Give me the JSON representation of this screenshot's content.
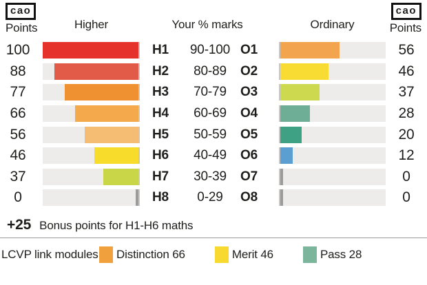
{
  "logo": {
    "text": "cao"
  },
  "header": {
    "left_points_label": "Points",
    "higher": "Higher",
    "marks": "Your % marks",
    "ordinary": "Ordinary",
    "right_points_label": "Points"
  },
  "rows": [
    {
      "left_points": "100",
      "h_grade": "H1",
      "range": "90-100",
      "o_grade": "O1",
      "right_points": "56",
      "h_value": 100,
      "o_value": 56,
      "h_color": "#e5322a",
      "o_color": "#f2a54e"
    },
    {
      "left_points": "88",
      "h_grade": "H2",
      "range": "80-89",
      "o_grade": "O2",
      "right_points": "46",
      "h_value": 88,
      "o_value": 46,
      "h_color": "#e25a48",
      "o_color": "#f8dc33"
    },
    {
      "left_points": "77",
      "h_grade": "H3",
      "range": "70-79",
      "o_grade": "O3",
      "right_points": "37",
      "h_value": 77,
      "o_value": 37,
      "h_color": "#ef9031",
      "o_color": "#cdd94f"
    },
    {
      "left_points": "66",
      "h_grade": "H4",
      "range": "60-69",
      "o_grade": "O4",
      "right_points": "28",
      "h_value": 66,
      "o_value": 28,
      "h_color": "#f4a94d",
      "o_color": "#6fae96"
    },
    {
      "left_points": "56",
      "h_grade": "H5",
      "range": "50-59",
      "o_grade": "O5",
      "right_points": "20",
      "h_value": 56,
      "o_value": 20,
      "h_color": "#f5bc74",
      "o_color": "#3fa183"
    },
    {
      "left_points": "46",
      "h_grade": "H6",
      "range": "40-49",
      "o_grade": "O6",
      "right_points": "12",
      "h_value": 46,
      "o_value": 12,
      "h_color": "#f8dc2b",
      "o_color": "#5b9fd2"
    },
    {
      "left_points": "37",
      "h_grade": "H7",
      "range": "30-39",
      "o_grade": "O7",
      "right_points": "0",
      "h_value": 37,
      "o_value": 0,
      "h_color": "#c8d647",
      "o_color": "#9b9b9b"
    },
    {
      "left_points": "0",
      "h_grade": "H8",
      "range": "0-29",
      "o_grade": "O8",
      "right_points": "0",
      "h_value": 0,
      "o_value": 0,
      "h_color": "#9b9b9b",
      "o_color": "#9b9b9b"
    }
  ],
  "bonus": {
    "points": "+25",
    "text": "Bonus points for H1-H6 maths"
  },
  "legend": {
    "title": "LCVP link modules",
    "items": [
      {
        "label": "Distinction 66",
        "color": "#f0a03c"
      },
      {
        "label": "Merit 46",
        "color": "#f7d930"
      },
      {
        "label": "Pass 28",
        "color": "#7ab59c"
      }
    ]
  },
  "chart_data": {
    "type": "bar",
    "title": "CAO Points",
    "categories": [
      "90-100",
      "80-89",
      "70-79",
      "60-69",
      "50-59",
      "40-49",
      "30-39",
      "0-29"
    ],
    "series": [
      {
        "name": "Higher",
        "grades": [
          "H1",
          "H2",
          "H3",
          "H4",
          "H5",
          "H6",
          "H7",
          "H8"
        ],
        "values": [
          100,
          88,
          77,
          66,
          56,
          46,
          37,
          0
        ]
      },
      {
        "name": "Ordinary",
        "grades": [
          "O1",
          "O2",
          "O3",
          "O4",
          "O5",
          "O6",
          "O7",
          "O8"
        ],
        "values": [
          56,
          46,
          37,
          28,
          20,
          12,
          0,
          0
        ]
      }
    ],
    "xlabel": "Your % marks",
    "ylabel": "Points",
    "value_range": [
      0,
      100
    ],
    "grid": false,
    "legend_position": "bottom",
    "annotations": [
      "+25 Bonus points for H1-H6 maths",
      "LCVP link modules: Distinction 66, Merit 46, Pass 28"
    ],
    "layout": "mirrored horizontal bars: Higher bars right-aligned growing left, Ordinary bars left-aligned growing right"
  }
}
